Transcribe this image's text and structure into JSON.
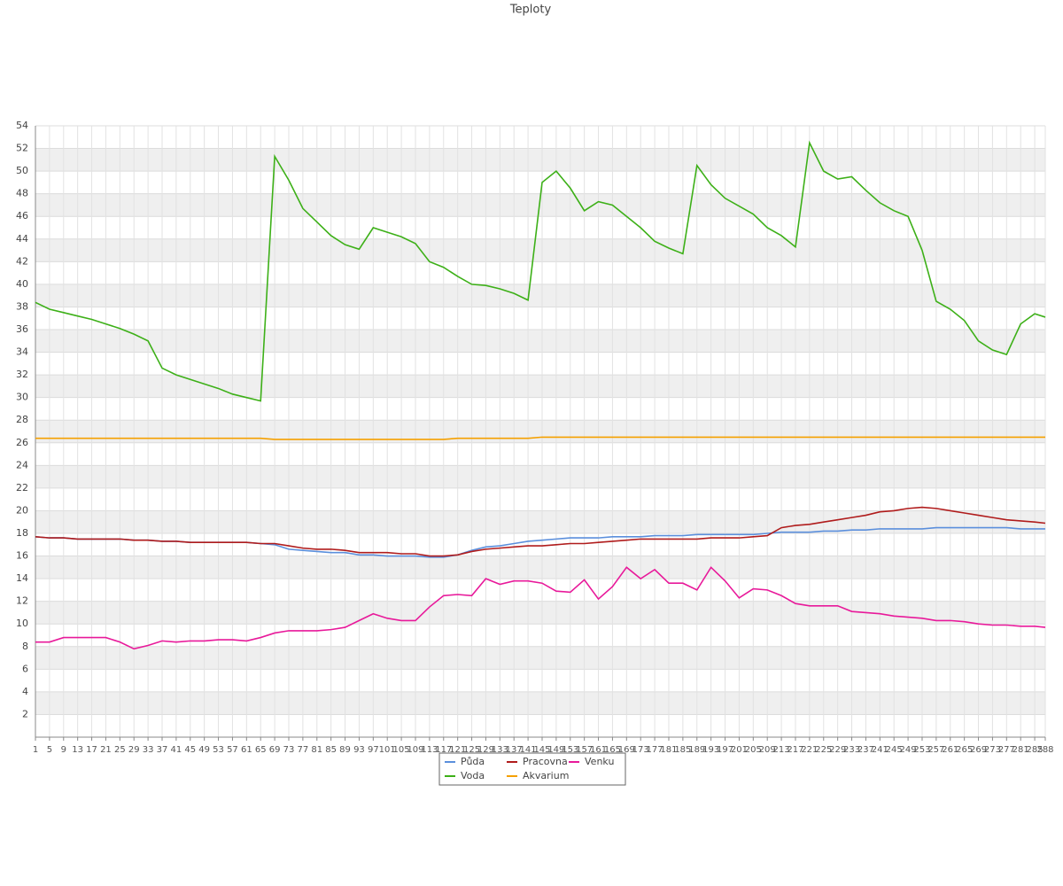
{
  "chart_data": {
    "type": "line",
    "title": "Teploty",
    "x": [
      1,
      5,
      9,
      13,
      17,
      21,
      25,
      29,
      33,
      37,
      41,
      45,
      49,
      53,
      57,
      61,
      65,
      69,
      73,
      77,
      81,
      85,
      89,
      93,
      97,
      101,
      105,
      109,
      113,
      117,
      121,
      125,
      129,
      133,
      137,
      141,
      145,
      149,
      153,
      157,
      161,
      165,
      169,
      173,
      177,
      181,
      185,
      189,
      193,
      197,
      201,
      205,
      209,
      213,
      217,
      221,
      225,
      229,
      233,
      237,
      241,
      245,
      249,
      253,
      257,
      261,
      265,
      269,
      273,
      277,
      281,
      285,
      288
    ],
    "xlim": [
      1,
      288
    ],
    "ylim": [
      0,
      54
    ],
    "yticks": [
      2,
      4,
      6,
      8,
      10,
      12,
      14,
      16,
      18,
      20,
      22,
      24,
      26,
      28,
      30,
      32,
      34,
      36,
      38,
      40,
      42,
      44,
      46,
      48,
      50,
      52,
      54
    ],
    "grid": true,
    "legend": "bottom",
    "series": [
      {
        "name": "Půda",
        "color": "#5b8fdc",
        "values": [
          17.7,
          17.6,
          17.6,
          17.5,
          17.5,
          17.5,
          17.5,
          17.4,
          17.4,
          17.3,
          17.3,
          17.2,
          17.2,
          17.2,
          17.2,
          17.2,
          17.1,
          17.0,
          16.6,
          16.5,
          16.4,
          16.3,
          16.3,
          16.1,
          16.1,
          16.0,
          16.0,
          16.0,
          15.9,
          15.9,
          16.1,
          16.5,
          16.8,
          16.9,
          17.1,
          17.3,
          17.4,
          17.5,
          17.6,
          17.6,
          17.6,
          17.7,
          17.7,
          17.7,
          17.8,
          17.8,
          17.8,
          17.9,
          17.9,
          17.9,
          17.9,
          17.9,
          18.0,
          18.1,
          18.1,
          18.1,
          18.2,
          18.2,
          18.3,
          18.3,
          18.4,
          18.4,
          18.4,
          18.4,
          18.5,
          18.5,
          18.5,
          18.5,
          18.5,
          18.5,
          18.4,
          18.4,
          18.4
        ]
      },
      {
        "name": "Pracovna",
        "color": "#b01c1c",
        "values": [
          17.7,
          17.6,
          17.6,
          17.5,
          17.5,
          17.5,
          17.5,
          17.4,
          17.4,
          17.3,
          17.3,
          17.2,
          17.2,
          17.2,
          17.2,
          17.2,
          17.1,
          17.1,
          16.9,
          16.7,
          16.6,
          16.6,
          16.5,
          16.3,
          16.3,
          16.3,
          16.2,
          16.2,
          16.0,
          16.0,
          16.1,
          16.4,
          16.6,
          16.7,
          16.8,
          16.9,
          16.9,
          17.0,
          17.1,
          17.1,
          17.2,
          17.3,
          17.4,
          17.5,
          17.5,
          17.5,
          17.5,
          17.5,
          17.6,
          17.6,
          17.6,
          17.7,
          17.8,
          18.5,
          18.7,
          18.8,
          19.0,
          19.2,
          19.4,
          19.6,
          19.9,
          20.0,
          20.2,
          20.3,
          20.2,
          20.0,
          19.8,
          19.6,
          19.4,
          19.2,
          19.1,
          19.0,
          18.9
        ]
      },
      {
        "name": "Venku",
        "color": "#e8199a",
        "values": [
          8.4,
          8.4,
          8.8,
          8.8,
          8.8,
          8.8,
          8.4,
          7.8,
          8.1,
          8.5,
          8.4,
          8.5,
          8.5,
          8.6,
          8.6,
          8.5,
          8.8,
          9.2,
          9.4,
          9.4,
          9.4,
          9.5,
          9.7,
          10.3,
          10.9,
          10.5,
          10.3,
          10.3,
          11.5,
          12.5,
          12.6,
          12.5,
          14.0,
          13.5,
          13.8,
          13.8,
          13.6,
          12.9,
          12.8,
          13.9,
          12.2,
          13.3,
          15.0,
          14.0,
          14.8,
          13.6,
          13.6,
          13.0,
          15.0,
          13.8,
          12.3,
          13.1,
          13.0,
          12.5,
          11.8,
          11.6,
          11.6,
          11.6,
          11.1,
          11.0,
          10.9,
          10.7,
          10.6,
          10.5,
          10.3,
          10.3,
          10.2,
          10.0,
          9.9,
          9.9,
          9.8,
          9.8,
          9.7
        ]
      },
      {
        "name": "Voda",
        "color": "#3db018",
        "values": [
          38.4,
          37.8,
          37.5,
          37.2,
          36.9,
          36.5,
          36.1,
          35.6,
          35.0,
          32.6,
          32.0,
          31.6,
          31.2,
          30.8,
          30.3,
          30.0,
          29.7,
          51.3,
          49.2,
          46.7,
          45.5,
          44.3,
          43.5,
          43.1,
          45.0,
          44.6,
          44.2,
          43.6,
          42.0,
          41.5,
          40.7,
          40.0,
          39.9,
          39.6,
          39.2,
          38.6,
          49.0,
          50.0,
          48.5,
          46.5,
          47.3,
          47.0,
          46.0,
          45.0,
          43.8,
          43.2,
          42.7,
          50.5,
          48.8,
          47.6,
          46.9,
          46.2,
          45.0,
          44.3,
          43.3,
          52.5,
          50.0,
          49.3,
          49.5,
          48.3,
          47.2,
          46.5,
          46.0,
          43.0,
          38.5,
          37.8,
          36.8,
          35.0,
          34.2,
          33.8,
          36.5,
          37.4,
          37.1
        ]
      },
      {
        "name": "Akvarium",
        "color": "#f5a000",
        "values": [
          26.4,
          26.4,
          26.4,
          26.4,
          26.4,
          26.4,
          26.4,
          26.4,
          26.4,
          26.4,
          26.4,
          26.4,
          26.4,
          26.4,
          26.4,
          26.4,
          26.4,
          26.3,
          26.3,
          26.3,
          26.3,
          26.3,
          26.3,
          26.3,
          26.3,
          26.3,
          26.3,
          26.3,
          26.3,
          26.3,
          26.4,
          26.4,
          26.4,
          26.4,
          26.4,
          26.4,
          26.5,
          26.5,
          26.5,
          26.5,
          26.5,
          26.5,
          26.5,
          26.5,
          26.5,
          26.5,
          26.5,
          26.5,
          26.5,
          26.5,
          26.5,
          26.5,
          26.5,
          26.5,
          26.5,
          26.5,
          26.5,
          26.5,
          26.5,
          26.5,
          26.5,
          26.5,
          26.5,
          26.5,
          26.5,
          26.5,
          26.5,
          26.5,
          26.5,
          26.5,
          26.5,
          26.5,
          26.5
        ]
      }
    ]
  }
}
